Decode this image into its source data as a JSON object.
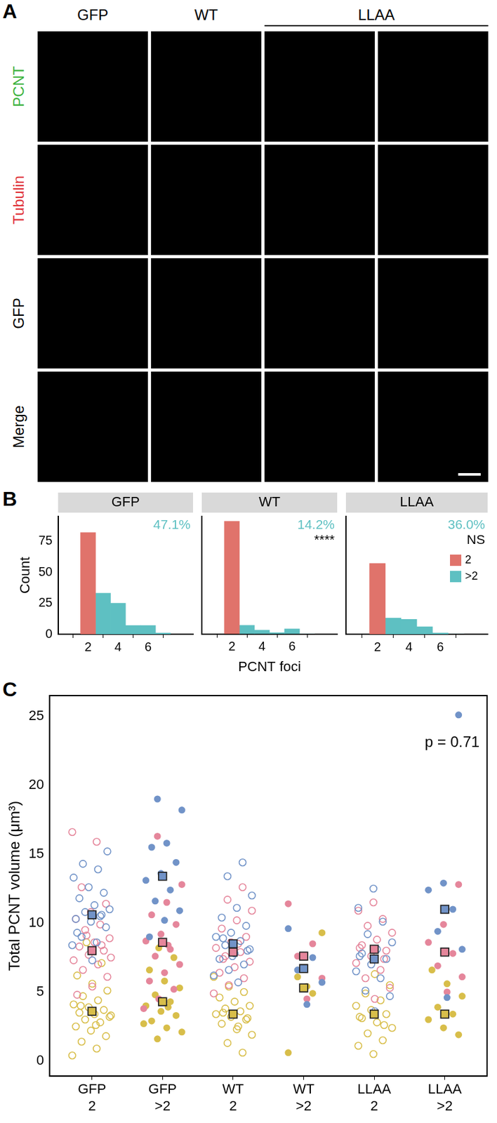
{
  "panel_letters": [
    "A",
    "B",
    "C"
  ],
  "image_grid": {
    "column_heads": [
      {
        "text": "GFP",
        "span": 1
      },
      {
        "text": "WT",
        "span": 1
      },
      {
        "text": "LLAA",
        "span": 2
      }
    ],
    "rows": [
      {
        "text": "PCNT",
        "color": "#3DB33D"
      },
      {
        "text": "Tubulin",
        "color": "#E0343A"
      },
      {
        "text": "GFP",
        "color": "#000000"
      },
      {
        "text": "Merge",
        "color": "#000000"
      }
    ]
  },
  "chart_data": [
    {
      "type": "histogram",
      "title": "GFP",
      "bins": [
        1.5,
        2.5,
        3.5,
        4.5,
        5.5,
        6.5,
        7.5
      ],
      "series": [
        {
          "name": "2",
          "color": "#E0736B",
          "values": [
            82,
            null,
            null,
            null,
            null,
            null
          ]
        },
        {
          "name": ">2",
          "color": "#5EC0C2",
          "values": [
            null,
            33,
            25,
            7,
            7,
            1
          ]
        }
      ],
      "xlim": [
        1.5,
        7.5
      ],
      "xticks": [
        2,
        4,
        6
      ],
      "ylim": [
        0,
        95
      ],
      "yticks": [
        0,
        25,
        50,
        75
      ],
      "ylabel": "Count",
      "annotations": [
        {
          "text": "47.1%",
          "color": "#5EC0C2"
        }
      ],
      "grid": false
    },
    {
      "type": "histogram",
      "title": "WT",
      "bins": [
        1.5,
        2.5,
        3.5,
        4.5,
        5.5,
        6.5,
        7.5
      ],
      "series": [
        {
          "name": "2",
          "color": "#E0736B",
          "values": [
            91,
            null,
            null,
            null,
            null,
            null
          ]
        },
        {
          "name": ">2",
          "color": "#5EC0C2",
          "values": [
            null,
            7,
            3,
            1,
            4,
            0
          ]
        }
      ],
      "xlim": [
        1.5,
        7.5
      ],
      "xticks": [
        2,
        4,
        6
      ],
      "ylim": [
        0,
        95
      ],
      "yticks": [
        0,
        25,
        50,
        75
      ],
      "xlabel": "PCNT foci",
      "tick_labels": "x",
      "annotations": [
        {
          "text": "14.2%",
          "color": "#5EC0C2"
        },
        {
          "text": "****",
          "color": "#000000"
        }
      ],
      "grid": false
    },
    {
      "type": "histogram",
      "title": "LLAA",
      "bins": [
        1.5,
        2.5,
        3.5,
        4.5,
        5.5,
        6.5,
        7.5
      ],
      "series": [
        {
          "name": "2",
          "color": "#E0736B",
          "values": [
            57,
            null,
            null,
            null,
            null,
            null
          ]
        },
        {
          "name": ">2",
          "color": "#5EC0C2",
          "values": [
            null,
            13,
            12,
            6,
            1,
            0
          ]
        }
      ],
      "xlim": [
        1.5,
        7.5
      ],
      "xticks": [
        2,
        4,
        6
      ],
      "ylim": [
        0,
        95
      ],
      "yticks": [
        0,
        25,
        50,
        75
      ],
      "tick_labels": "x",
      "legend": "upper right",
      "annotations": [
        {
          "text": "36.0%",
          "color": "#5EC0C2"
        },
        {
          "text": "NS",
          "color": "#000000"
        }
      ],
      "grid": false
    },
    {
      "type": "scatter",
      "categories": [
        [
          "GFP",
          "2"
        ],
        [
          "GFP",
          ">2"
        ],
        [
          "WT",
          "2"
        ],
        [
          "WT",
          ">2"
        ],
        [
          "LLAA",
          "2"
        ],
        [
          "LLAA",
          ">2"
        ]
      ],
      "ylabel": "Total PCNT volume (μm³)",
      "ylim": [
        -1.1,
        26.5
      ],
      "yticks": [
        0,
        5,
        10,
        15,
        20,
        25
      ],
      "grid": false,
      "annotations": [
        {
          "text": "p = 0.71",
          "color": "#000000"
        }
      ],
      "series": [
        {
          "color": "#7193C8",
          "marker": "open_circle",
          "values": [
            [
              8.4,
              8.6,
              9.0,
              9.7,
              10.1,
              10.3,
              10.5,
              10.8,
              11.0,
              11.3,
              11.8,
              12.2,
              12.6,
              13.3,
              13.9,
              14.3,
              15.2,
              7.3,
              9.3,
              10.6
            ],
            [],
            [
              14.4,
              13.4,
              12.0,
              11.1,
              10.4,
              9.8,
              9.3,
              9.0,
              8.7,
              8.4,
              8.1,
              7.8,
              7.4,
              7.0,
              6.6,
              6.2,
              5.7,
              8.9,
              8.0,
              7.6
            ],
            [],
            [
              12.5,
              11.1,
              10.1,
              9.2,
              8.6,
              8.1,
              7.8,
              7.4,
              7.0,
              6.5,
              6.0,
              5.1,
              4.7,
              3.6,
              7.6
            ],
            []
          ]
        },
        {
          "color": "#E5869B",
          "marker": "open_circle",
          "values": [
            [
              16.6,
              15.9,
              12.6,
              11.4,
              10.8,
              10.3,
              9.9,
              9.5,
              8.9,
              8.6,
              8.3,
              8.0,
              7.7,
              7.3,
              7.0,
              6.6,
              6.1,
              5.4,
              4.8,
              8.4,
              9.1,
              7.5
            ],
            [],
            [
              12.6,
              11.7,
              10.9,
              10.2,
              9.6,
              9.0,
              8.6,
              8.2,
              7.9,
              7.6,
              7.2,
              6.8,
              6.4,
              6.0,
              5.5,
              4.9,
              8.5,
              7.4
            ],
            [],
            [
              11.5,
              10.9,
              10.3,
              9.8,
              9.3,
              8.8,
              8.4,
              8.0,
              7.6,
              7.1,
              6.6,
              6.0,
              5.3,
              4.5,
              8.2,
              7.4
            ],
            []
          ]
        },
        {
          "color": "#D8BE4A",
          "marker": "open_circle",
          "values": [
            [
              0.4,
              0.9,
              1.4,
              1.8,
              2.2,
              2.5,
              2.8,
              3.0,
              3.2,
              3.4,
              3.5,
              3.7,
              3.9,
              4.1,
              4.4,
              4.7,
              5.1,
              5.6,
              6.2,
              7.1,
              8.6,
              3.3,
              2.6,
              4.0
            ],
            [],
            [
              0.6,
              1.3,
              1.9,
              2.3,
              2.7,
              3.0,
              3.2,
              3.4,
              3.6,
              3.8,
              4.0,
              4.3,
              4.6,
              5.0,
              5.4,
              6.1,
              2.5,
              3.5,
              3.1
            ],
            [],
            [
              0.5,
              1.1,
              1.5,
              2.0,
              2.4,
              2.8,
              3.1,
              3.4,
              3.7,
              4.0,
              4.4,
              4.9,
              5.5,
              6.3,
              3.2,
              2.6
            ],
            []
          ]
        },
        {
          "color": "#7193C8",
          "marker": "circle",
          "values": [
            [],
            [
              19.0,
              18.2,
              15.8,
              15.5,
              14.4,
              13.6,
              13.1,
              12.4,
              11.6,
              10.9,
              10.2,
              9.0
            ],
            [],
            [
              9.6,
              7.5,
              6.6,
              5.7,
              4.1
            ],
            [],
            [
              25.1,
              12.9,
              12.4,
              11.0,
              9.4,
              8.1,
              4.6
            ]
          ]
        },
        {
          "color": "#E5869B",
          "marker": "circle",
          "values": [
            [],
            [
              16.3,
              12.8,
              11.5,
              10.6,
              9.9,
              9.2,
              8.7,
              8.1,
              7.6,
              7.0,
              6.4,
              5.8,
              5.2,
              4.5,
              3.8,
              8.4
            ],
            [],
            [
              11.4,
              8.5,
              7.6,
              6.0,
              4.5
            ],
            [],
            [
              12.8,
              9.9,
              8.6,
              7.8,
              6.9,
              6.1,
              5.0
            ]
          ]
        },
        {
          "color": "#D8BE4A",
          "marker": "circle",
          "values": [
            [],
            [
              1.6,
              2.1,
              2.4,
              2.9,
              3.3,
              3.6,
              4.0,
              4.3,
              4.8,
              5.3,
              5.8,
              6.6,
              7.5,
              8.2,
              2.7,
              3.9
            ],
            [],
            [
              0.6,
              4.9,
              6.1,
              9.3,
              5.4
            ],
            [],
            [
              1.9,
              2.4,
              3.0,
              3.4,
              3.9,
              4.7,
              5.6,
              6.6
            ]
          ]
        },
        {
          "color": "#7193C8",
          "marker": "square",
          "values": [
            10.6,
            13.4,
            8.5,
            6.7,
            7.4,
            11.0
          ]
        },
        {
          "color": "#E5869B",
          "marker": "square",
          "values": [
            8.0,
            8.6,
            7.9,
            7.6,
            8.1,
            7.9
          ]
        },
        {
          "color": "#D8BE4A",
          "marker": "square",
          "values": [
            3.6,
            4.3,
            3.4,
            5.3,
            3.4,
            3.4
          ]
        }
      ]
    }
  ]
}
